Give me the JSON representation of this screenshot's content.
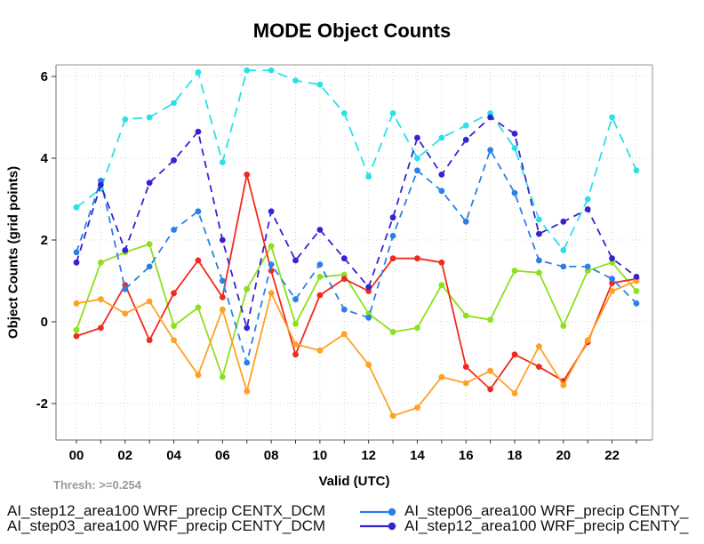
{
  "title": "MODE Object Counts",
  "thresh_label": "Thresh: >=0.254",
  "axes": {
    "x_label": "Valid (UTC)",
    "y_label": "Object Counts (grid points)",
    "x_tick_labels": [
      "00",
      "02",
      "04",
      "06",
      "08",
      "10",
      "12",
      "14",
      "16",
      "18",
      "20",
      "22"
    ],
    "y_tick_labels": [
      "6",
      "4",
      "2",
      "0",
      "-2"
    ],
    "y_tick_values": [
      6,
      4,
      2,
      0,
      -2
    ]
  },
  "legend": {
    "left_column": [
      {
        "label": "AI_step12_area100 WRF_precip CENTX_DCM"
      },
      {
        "label": "AI_step03_area100 WRF_precip CENTY_DCM"
      }
    ],
    "right_column": [
      {
        "label": "AI_step06_area100 WRF_precip CENTY_",
        "color": "#2A80E8"
      },
      {
        "label": "AI_step12_area100 WRF_precip CENTY_",
        "color": "#3423D1"
      }
    ]
  },
  "chart_data": {
    "type": "line",
    "x_categories": [
      "00",
      "01",
      "02",
      "03",
      "04",
      "05",
      "06",
      "07",
      "08",
      "09",
      "10",
      "11",
      "12",
      "13",
      "14",
      "15",
      "16",
      "17",
      "18",
      "19",
      "20",
      "21",
      "22",
      "23"
    ],
    "xlabel": "Valid (UTC)",
    "ylabel": "Object Counts (grid points)",
    "title": "MODE Object Counts",
    "ylim": [
      -2.9,
      6.3
    ],
    "grid": "dotted, every hour vertical, every 2 units horizontal",
    "legend_position": "bottom",
    "marker": "filled-circle",
    "series": [
      {
        "name": "series-green",
        "color": "#8DE01C",
        "dash": false,
        "values": [
          -0.2,
          1.45,
          1.7,
          1.9,
          -0.1,
          0.35,
          -1.35,
          0.8,
          1.85,
          -0.05,
          1.1,
          1.15,
          0.2,
          -0.25,
          -0.15,
          0.9,
          0.15,
          0.05,
          1.25,
          1.2,
          -0.1,
          1.25,
          1.45,
          0.75
        ]
      },
      {
        "name": "series-red",
        "color": "#F02A1C",
        "dash": false,
        "values": [
          -0.35,
          -0.15,
          0.9,
          -0.45,
          0.7,
          1.5,
          0.6,
          3.6,
          1.25,
          -0.8,
          0.65,
          1.05,
          0.75,
          1.55,
          1.55,
          1.45,
          -1.1,
          -1.65,
          -0.8,
          -1.1,
          -1.45,
          -0.5,
          0.95,
          1.05
        ]
      },
      {
        "name": "series-orange",
        "color": "#FFA125",
        "dash": false,
        "values": [
          0.45,
          0.55,
          0.2,
          0.5,
          -0.45,
          -1.3,
          0.3,
          -1.7,
          0.7,
          -0.55,
          -0.7,
          -0.3,
          -1.05,
          -2.3,
          -2.1,
          -1.35,
          -1.5,
          -1.2,
          -1.75,
          -0.6,
          -1.55,
          -0.45,
          0.75,
          1.0
        ]
      },
      {
        "name": "series-cyan",
        "color": "#2BE0E8",
        "dash": true,
        "values": [
          2.8,
          3.25,
          4.95,
          5.0,
          5.35,
          6.1,
          3.9,
          6.15,
          6.15,
          5.9,
          5.8,
          5.1,
          3.55,
          5.1,
          4.0,
          4.5,
          4.8,
          5.1,
          4.25,
          2.5,
          1.75,
          3.0,
          5.0,
          3.7
        ]
      },
      {
        "name": "series-blue (AI_step06_area100 WRF_precip CENTY_)",
        "color": "#2A80E8",
        "dash": true,
        "values": [
          1.7,
          3.45,
          0.8,
          1.35,
          2.25,
          2.7,
          1.0,
          -1.0,
          1.4,
          0.55,
          1.4,
          0.3,
          0.1,
          2.1,
          3.7,
          3.2,
          2.45,
          4.2,
          3.15,
          1.5,
          1.35,
          1.35,
          1.05,
          0.45
        ]
      },
      {
        "name": "series-navy (AI_step12_area100 WRF_precip CENTY_)",
        "color": "#3423D1",
        "dash": true,
        "values": [
          1.45,
          3.35,
          1.75,
          3.4,
          3.95,
          4.65,
          2.0,
          -0.15,
          2.7,
          1.5,
          2.25,
          1.55,
          0.85,
          2.55,
          4.5,
          3.6,
          4.45,
          5.0,
          4.6,
          2.15,
          2.45,
          2.75,
          1.55,
          1.1
        ]
      }
    ]
  },
  "colors": {
    "grid": "#D6D6D6",
    "box_light": "#B8B8B8",
    "box_dark": "#8A8A8A",
    "tick": "#333333",
    "thresh_text": "#999999"
  }
}
